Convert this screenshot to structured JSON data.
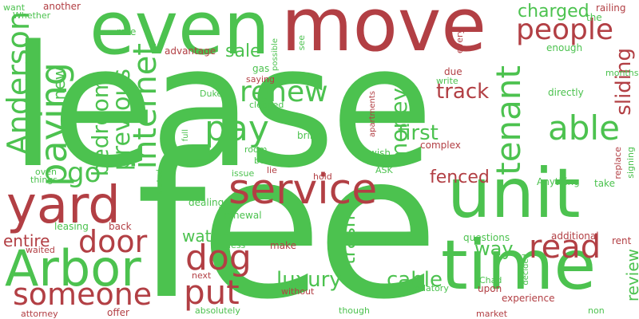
{
  "colors": {
    "green": "#4cc24f",
    "red": "#b23f44",
    "background": "#ffffff"
  },
  "words": {
    "lease": "lease",
    "fee": "fee",
    "move": "move",
    "even": "even",
    "unit": "unit",
    "time": "time",
    "service": "service",
    "yard": "yard",
    "arbor": "Arbor",
    "anderson": "Anderson",
    "paying": "paying",
    "people": "people",
    "pay": "pay",
    "renew": "renew",
    "tenant": "tenant",
    "able": "able",
    "internet": "internet",
    "previous": "previous",
    "bedroom": "bedroom",
    "money": "money",
    "door": "door",
    "dog": "dog",
    "put": "put",
    "someone": "someone",
    "read": "read",
    "go": "go",
    "first": "first",
    "track": "track",
    "sliding": "sliding",
    "charged": "charged",
    "luxury": "luxury",
    "cable": "cable",
    "water": "water",
    "trash": "trash",
    "way": "way",
    "fenced": "fenced",
    "review": "review",
    "entire": "entire",
    "sale": "sale",
    "new": "new",
    "rate": "rate",
    "advantage": "advantage",
    "gas": "gas",
    "possible": "possible",
    "see": "see",
    "due": "due",
    "every": "every",
    "enough": "enough",
    "months": "months",
    "railing": "railing",
    "want": "want",
    "another": "another",
    "whether": "Whether",
    "the": "the",
    "saying": "saying",
    "duke": "Duke",
    "write": "write",
    "directly": "directly",
    "cleaned": "cleaned",
    "full": "full",
    "apartments": "apartments",
    "room": "room",
    "better": "better",
    "bring": "bring",
    "wish": "wish",
    "complex": "complex",
    "replace": "replace",
    "signing": "signing",
    "oven": "oven",
    "things": "things",
    "stated": "stated",
    "issue": "issue",
    "lie": "lie",
    "hold": "hold",
    "ask": "ASK",
    "anything": "Anything",
    "take": "take",
    "dealing": "dealing",
    "back": "back",
    "leasing": "leasing",
    "renewal": "renewal",
    "waited": "waited",
    "less": "less",
    "make": "make",
    "please": "Please",
    "questions": "questions",
    "additional": "additional",
    "rent": "rent",
    "next": "next",
    "decided": "decided",
    "chad": "Chad",
    "upon": "upon",
    "without": "without",
    "predatory": "predatory",
    "absolutely": "absolutely",
    "offer": "offer",
    "attorney": "attorney",
    "though": "though",
    "market": "market",
    "experience": "experience",
    "non": "non"
  }
}
